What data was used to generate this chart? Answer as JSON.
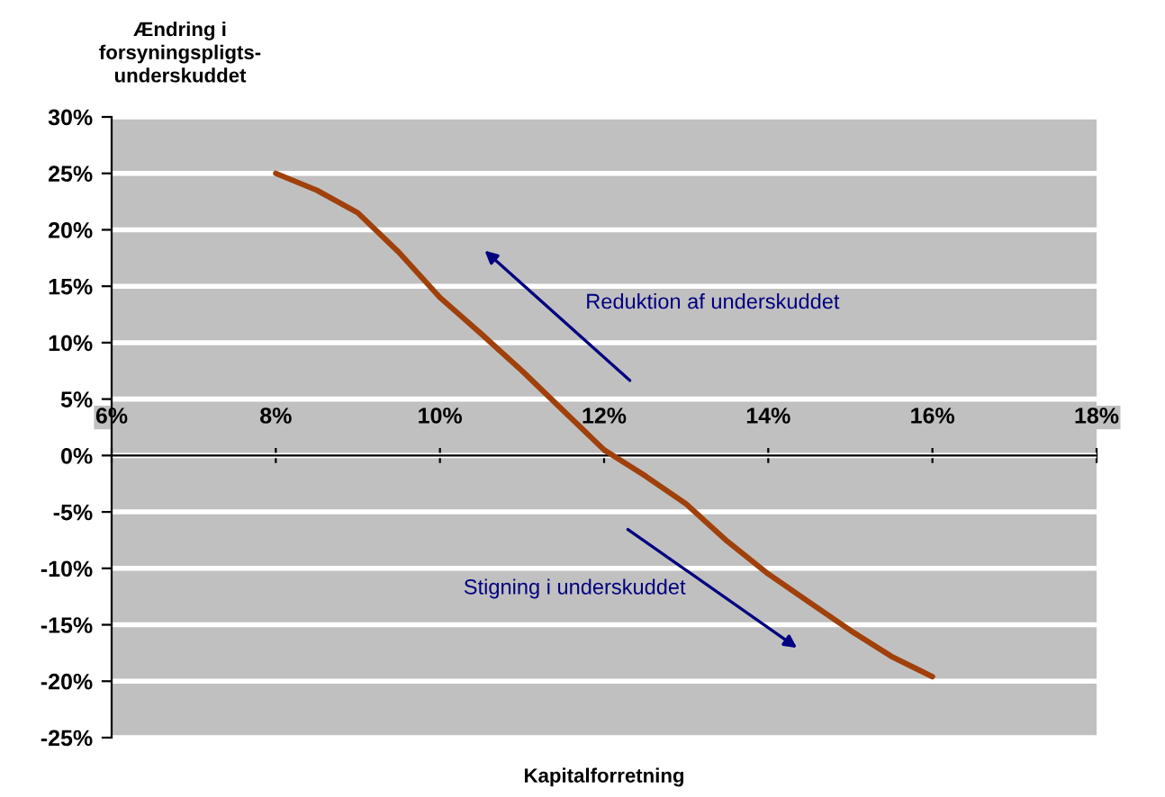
{
  "chart_data": {
    "type": "line",
    "xlabel": "Kapitalforretning",
    "ylabel": "Ændring i\nforsyningspligts-\nunderskuddet",
    "x": [
      8,
      8.5,
      9,
      9.5,
      10,
      10.5,
      11,
      11.5,
      12,
      12.5,
      13,
      13.5,
      14,
      14.5,
      15,
      15.5,
      16
    ],
    "series": [
      {
        "color": "#a0400a",
        "values": [
          25,
          23.5,
          21.5,
          18,
          14,
          10.8,
          7.5,
          4,
          0.5,
          -1.8,
          -4.3,
          -7.6,
          -10.5,
          -13,
          -15.5,
          -17.8,
          -19.6
        ]
      }
    ],
    "xlim": [
      6,
      18
    ],
    "xticks": [
      {
        "value": 6,
        "label": "6%"
      },
      {
        "value": 8,
        "label": "8%"
      },
      {
        "value": 10,
        "label": "10%"
      },
      {
        "value": 12,
        "label": "12%"
      },
      {
        "value": 14,
        "label": "14%"
      },
      {
        "value": 16,
        "label": "16%"
      },
      {
        "value": 18,
        "label": "18%"
      }
    ],
    "ylim": [
      -25,
      30
    ],
    "yticks": [
      {
        "value": -25,
        "label": "-25%"
      },
      {
        "value": -20,
        "label": "-20%"
      },
      {
        "value": -15,
        "label": "-15%"
      },
      {
        "value": -10,
        "label": "-10%"
      },
      {
        "value": -5,
        "label": "-5%"
      },
      {
        "value": 0,
        "label": "0%"
      },
      {
        "value": 5,
        "label": "5%"
      },
      {
        "value": 10,
        "label": "10%"
      },
      {
        "value": 15,
        "label": "15%"
      },
      {
        "value": 20,
        "label": "20%"
      },
      {
        "value": 25,
        "label": "25%"
      },
      {
        "value": 30,
        "label": "30%"
      }
    ],
    "grid": "y",
    "marker": "none",
    "line_style": "solid",
    "legend": false,
    "annotations": [
      "Reduktion af underskuddet",
      "Stigning i underskuddet"
    ]
  }
}
